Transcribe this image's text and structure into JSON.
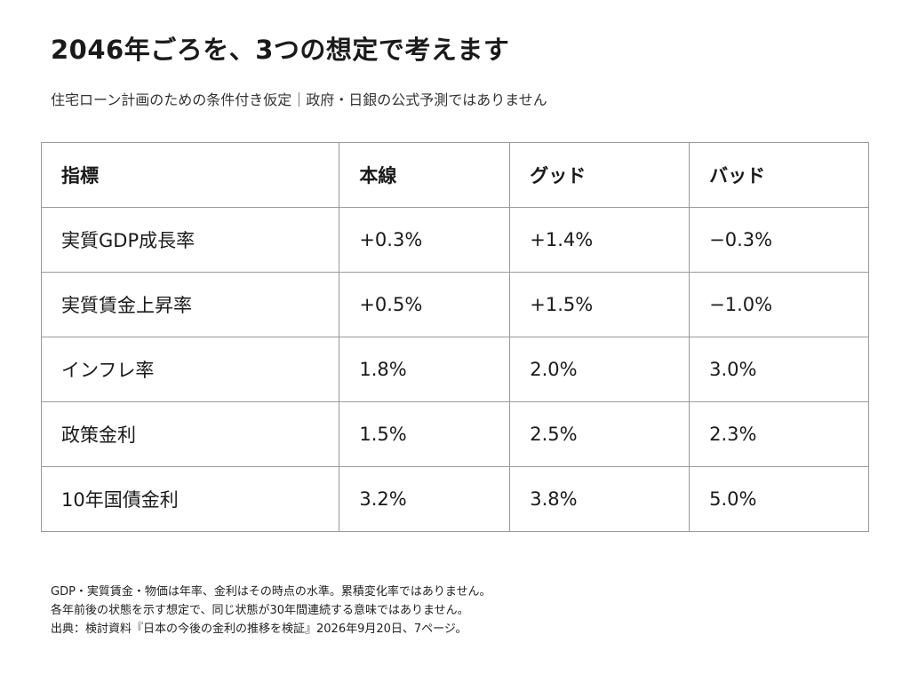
{
  "header": {
    "title": "2046年ごろを、3つの想定で考えます",
    "subtitle": "住宅ローン計画のための条件付き仮定｜政府・日銀の公式予測ではありません"
  },
  "table": {
    "columns": [
      "指標",
      "本線",
      "グッド",
      "バッド"
    ],
    "rows": [
      [
        "実質GDP成長率",
        "+0.3%",
        "+1.4%",
        "−0.3%"
      ],
      [
        "実質賃金上昇率",
        "+0.5%",
        "+1.5%",
        "−1.0%"
      ],
      [
        "インフレ率",
        "1.8%",
        "2.0%",
        "3.0%"
      ],
      [
        "政策金利",
        "1.5%",
        "2.5%",
        "2.3%"
      ],
      [
        "10年国債金利",
        "3.2%",
        "3.8%",
        "5.0%"
      ]
    ]
  },
  "notes": [
    "GDP・実質賃金・物価は年率、金利はその時点の水準。累積変化率ではありません。",
    "各年前後の状態を示す想定で、同じ状態が30年間連続する意味ではありません。",
    "出典：検討資料『日本の今後の金利の推移を検証』2026年9月20日、7ページ。"
  ]
}
